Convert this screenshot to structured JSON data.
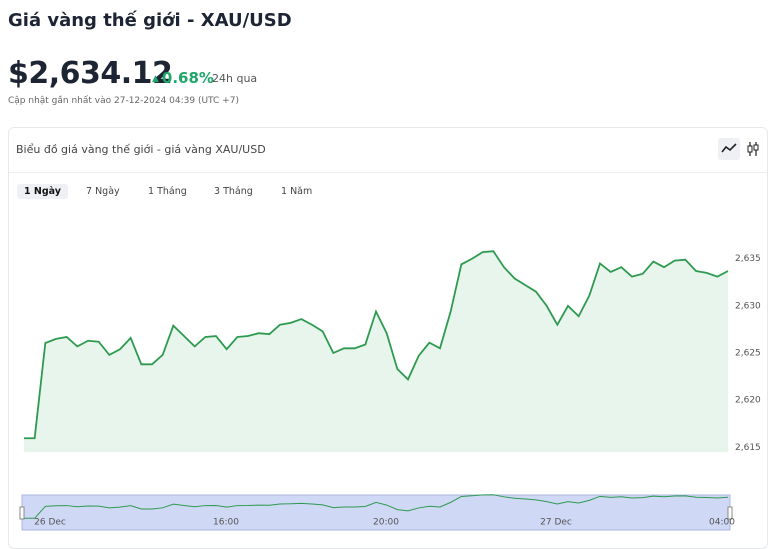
{
  "header": {
    "title": "Giá vàng thế giới - XAU/USD",
    "price": "$2,634.12",
    "change": "0.68%",
    "period": "24h qua",
    "updated": "Cập nhật gần nhất vào 27-12-2024 04:39 (UTC +7)"
  },
  "card": {
    "title": "Biểu đồ giá vàng thế giới - giá vàng XAU/USD",
    "tabs": [
      "1 Ngày",
      "7 Ngày",
      "1 Tháng",
      "3 Tháng",
      "1 Năm"
    ]
  },
  "chart_data": {
    "type": "area",
    "color": "#2e9a50",
    "values": [
      2615.96,
      2615.96,
      2626.06,
      2626.5,
      2626.7,
      2625.7,
      2626.3,
      2626.2,
      2624.8,
      2625.4,
      2626.6,
      2623.8,
      2623.8,
      2624.8,
      2627.9,
      2626.8,
      2625.7,
      2626.7,
      2626.8,
      2625.4,
      2626.7,
      2626.8,
      2627.1,
      2627.0,
      2628.0,
      2628.2,
      2628.6,
      2628.0,
      2627.3,
      2625.0,
      2625.5,
      2625.5,
      2625.9,
      2629.4,
      2627.1,
      2623.3,
      2622.2,
      2624.7,
      2626.1,
      2625.5,
      2629.4,
      2634.4,
      2635.0,
      2635.7,
      2635.8,
      2634.1,
      2632.9,
      2632.2,
      2631.5,
      2630.0,
      2628.0,
      2630.0,
      2628.9,
      2631.1,
      2634.5,
      2633.6,
      2634.1,
      2633.1,
      2633.4,
      2634.7,
      2634.1,
      2634.8,
      2634.9,
      2633.7,
      2633.5,
      2633.1,
      2633.7
    ],
    "ylim": [
      2614.5,
      2640.7
    ],
    "yticks": [
      {
        "value": 2615,
        "label": "2,615"
      },
      {
        "value": 2620,
        "label": "2,620"
      },
      {
        "value": 2625,
        "label": "2,625"
      },
      {
        "value": 2630,
        "label": "2,630"
      },
      {
        "value": 2635,
        "label": "2,635"
      }
    ],
    "navigator_labels": [
      "26 Dec",
      "16:00",
      "20:00",
      "27 Dec",
      "04:00"
    ]
  }
}
